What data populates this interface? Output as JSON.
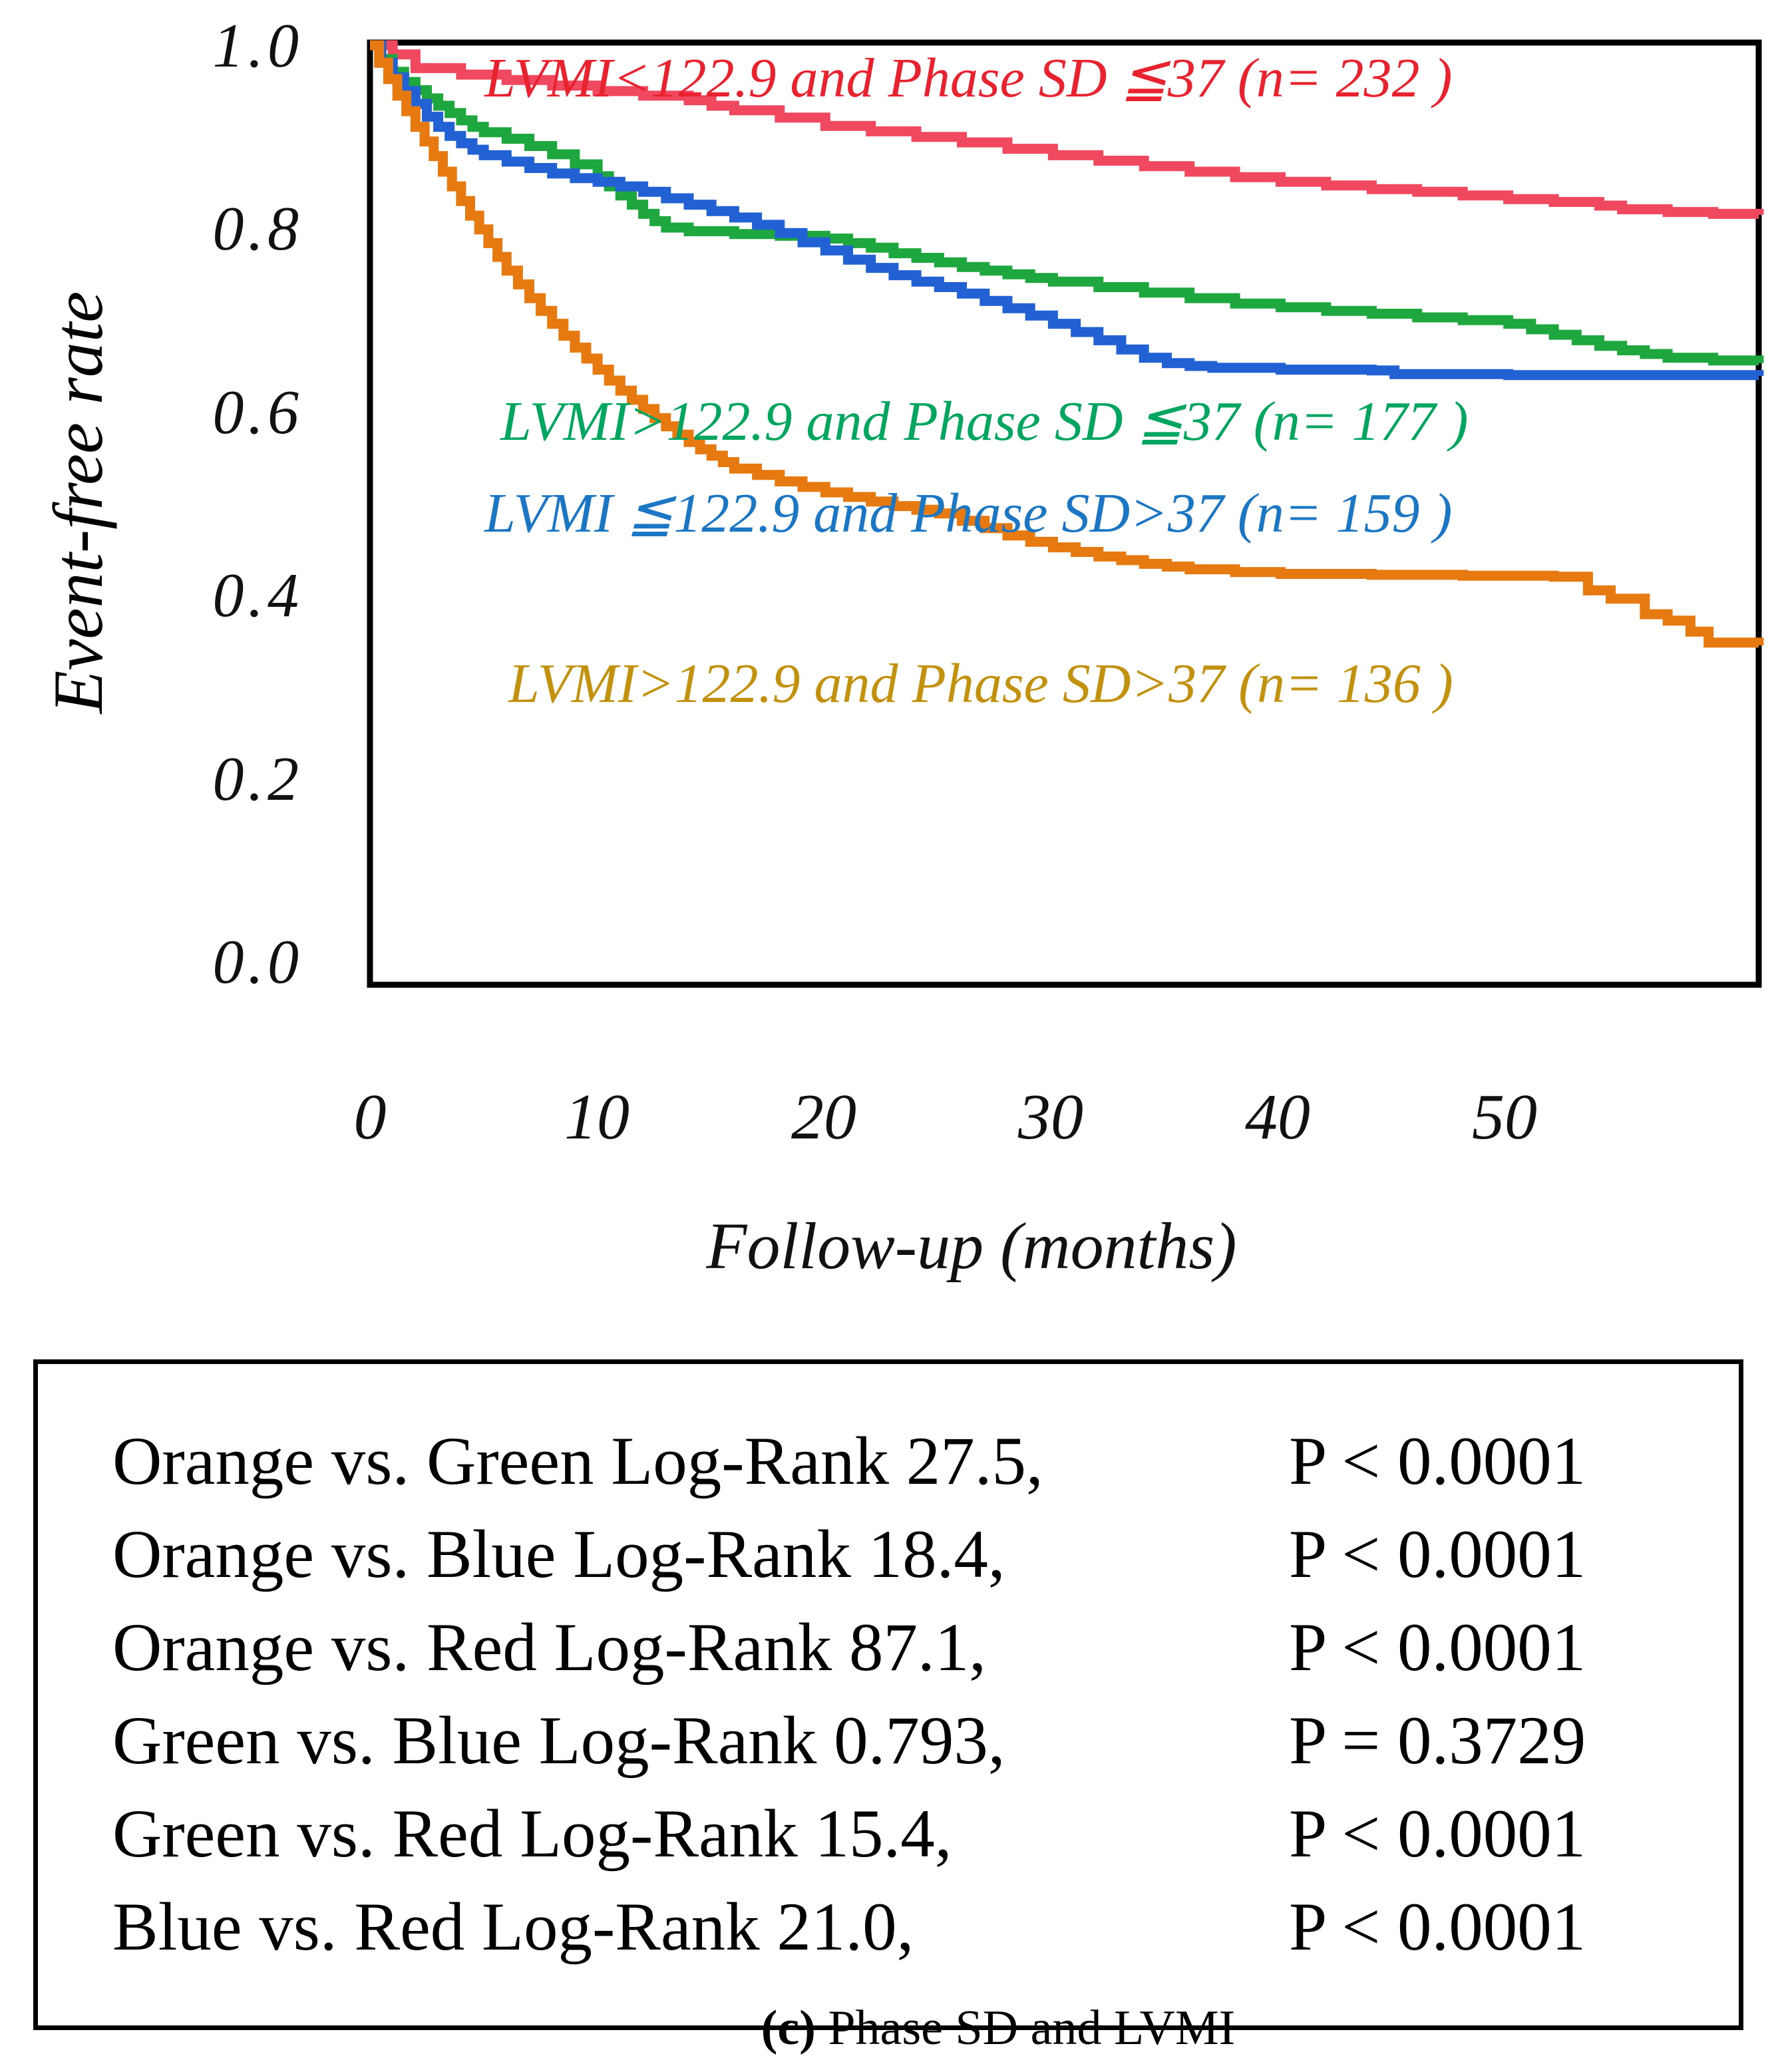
{
  "figure": {
    "caption_prefix": "(c)",
    "caption_rest": " Phase SD and LVMI"
  },
  "chart_data": {
    "type": "line",
    "subtype": "kaplan-meier-step-curves",
    "title": "",
    "xlabel": "Follow-up (months)",
    "ylabel": "Event-free rate",
    "xlim": [
      0,
      61
    ],
    "ylim": [
      0.0,
      1.0
    ],
    "xticks": [
      "0",
      "10",
      "20",
      "30",
      "40",
      "50"
    ],
    "yticks": [
      "1.0",
      "0.8",
      "0.6",
      "0.4",
      "0.2",
      "0.0"
    ],
    "grid": false,
    "legend_position": "inside-plot",
    "series": [
      {
        "name": "red",
        "label": "LVMI<122.9 and Phase SD ≦37 (n= 232 )",
        "n": 232,
        "color": "#f0485f",
        "label_color": "#e8232f",
        "points": [
          [
            0,
            1.0
          ],
          [
            1,
            0.99
          ],
          [
            2,
            0.975
          ],
          [
            4,
            0.968
          ],
          [
            6,
            0.962
          ],
          [
            8,
            0.956
          ],
          [
            10,
            0.95
          ],
          [
            12,
            0.945
          ],
          [
            14,
            0.94
          ],
          [
            15,
            0.934
          ],
          [
            16,
            0.929
          ],
          [
            18,
            0.921
          ],
          [
            20,
            0.912
          ],
          [
            22,
            0.906
          ],
          [
            24,
            0.9
          ],
          [
            26,
            0.894
          ],
          [
            28,
            0.887
          ],
          [
            30,
            0.88
          ],
          [
            32,
            0.874
          ],
          [
            34,
            0.868
          ],
          [
            36,
            0.862
          ],
          [
            38,
            0.856
          ],
          [
            40,
            0.851
          ],
          [
            42,
            0.847
          ],
          [
            44,
            0.843
          ],
          [
            46,
            0.84
          ],
          [
            48,
            0.836
          ],
          [
            50,
            0.832
          ],
          [
            52,
            0.829
          ],
          [
            54,
            0.825
          ],
          [
            55,
            0.821
          ],
          [
            57,
            0.818
          ],
          [
            59,
            0.816
          ],
          [
            61,
            0.815
          ]
        ]
      },
      {
        "name": "green",
        "label": "LVMI>122.9 and Phase SD ≦37 (n= 177 )",
        "n": 177,
        "color": "#1ea73e",
        "label_color": "#00a55f",
        "points": [
          [
            0,
            1.0
          ],
          [
            0.5,
            0.985
          ],
          [
            1,
            0.971
          ],
          [
            1.5,
            0.96
          ],
          [
            2,
            0.951
          ],
          [
            2.5,
            0.942
          ],
          [
            3,
            0.934
          ],
          [
            3.5,
            0.926
          ],
          [
            4,
            0.918
          ],
          [
            4.5,
            0.911
          ],
          [
            5,
            0.905
          ],
          [
            6,
            0.898
          ],
          [
            7,
            0.89
          ],
          [
            8,
            0.881
          ],
          [
            9,
            0.87
          ],
          [
            10,
            0.857
          ],
          [
            10.5,
            0.846
          ],
          [
            11,
            0.836
          ],
          [
            11.5,
            0.826
          ],
          [
            12,
            0.816
          ],
          [
            12.5,
            0.808
          ],
          [
            13,
            0.801
          ],
          [
            14,
            0.797
          ],
          [
            16,
            0.794
          ],
          [
            18,
            0.792
          ],
          [
            20,
            0.789
          ],
          [
            21,
            0.784
          ],
          [
            22,
            0.779
          ],
          [
            23,
            0.773
          ],
          [
            24,
            0.768
          ],
          [
            25,
            0.763
          ],
          [
            26,
            0.758
          ],
          [
            27,
            0.754
          ],
          [
            28,
            0.75
          ],
          [
            29,
            0.746
          ],
          [
            30,
            0.742
          ],
          [
            32,
            0.736
          ],
          [
            34,
            0.73
          ],
          [
            36,
            0.724
          ],
          [
            38,
            0.718
          ],
          [
            40,
            0.714
          ],
          [
            42,
            0.71
          ],
          [
            44,
            0.707
          ],
          [
            46,
            0.703
          ],
          [
            48,
            0.7
          ],
          [
            50,
            0.696
          ],
          [
            51,
            0.69
          ],
          [
            52,
            0.684
          ],
          [
            53,
            0.678
          ],
          [
            54,
            0.672
          ],
          [
            55,
            0.667
          ],
          [
            56,
            0.663
          ],
          [
            57,
            0.659
          ],
          [
            59,
            0.656
          ],
          [
            61,
            0.653
          ]
        ]
      },
      {
        "name": "blue",
        "label": "LVMI ≦122.9 and Phase SD>37 (n= 159 )",
        "n": 159,
        "color": "#2161d4",
        "label_color": "#1b76c3",
        "points": [
          [
            0,
            1.0
          ],
          [
            0.5,
            0.981
          ],
          [
            1,
            0.965
          ],
          [
            1.5,
            0.95
          ],
          [
            2,
            0.936
          ],
          [
            2.5,
            0.922
          ],
          [
            3,
            0.911
          ],
          [
            3.5,
            0.901
          ],
          [
            4,
            0.893
          ],
          [
            4.5,
            0.886
          ],
          [
            5,
            0.88
          ],
          [
            6,
            0.873
          ],
          [
            7,
            0.866
          ],
          [
            8,
            0.86
          ],
          [
            9,
            0.855
          ],
          [
            10,
            0.851
          ],
          [
            11,
            0.846
          ],
          [
            12,
            0.84
          ],
          [
            13,
            0.833
          ],
          [
            14,
            0.826
          ],
          [
            15,
            0.819
          ],
          [
            16,
            0.812
          ],
          [
            17,
            0.804
          ],
          [
            18,
            0.795
          ],
          [
            19,
            0.785
          ],
          [
            20,
            0.776
          ],
          [
            21,
            0.766
          ],
          [
            22,
            0.757
          ],
          [
            23,
            0.749
          ],
          [
            24,
            0.742
          ],
          [
            25,
            0.736
          ],
          [
            26,
            0.729
          ],
          [
            27,
            0.721
          ],
          [
            28,
            0.713
          ],
          [
            29,
            0.705
          ],
          [
            30,
            0.696
          ],
          [
            31,
            0.687
          ],
          [
            32,
            0.678
          ],
          [
            33,
            0.668
          ],
          [
            34,
            0.659
          ],
          [
            35,
            0.653
          ],
          [
            36,
            0.65
          ],
          [
            37,
            0.648
          ],
          [
            40,
            0.646
          ],
          [
            44,
            0.645
          ],
          [
            45,
            0.641
          ],
          [
            50,
            0.64
          ],
          [
            56,
            0.64
          ],
          [
            61,
            0.639
          ]
        ]
      },
      {
        "name": "orange",
        "label": "LVMI>122.9 and Phase SD>37 (n= 136 )",
        "n": 136,
        "color": "#e6790f",
        "label_color": "#c2920e",
        "points": [
          [
            0,
            1.0
          ],
          [
            0.4,
            0.981
          ],
          [
            0.8,
            0.963
          ],
          [
            1.2,
            0.945
          ],
          [
            1.6,
            0.928
          ],
          [
            2,
            0.911
          ],
          [
            2.4,
            0.895
          ],
          [
            2.8,
            0.879
          ],
          [
            3.2,
            0.862
          ],
          [
            3.6,
            0.846
          ],
          [
            4,
            0.83
          ],
          [
            4.4,
            0.814
          ],
          [
            4.8,
            0.799
          ],
          [
            5.2,
            0.784
          ],
          [
            5.6,
            0.769
          ],
          [
            6,
            0.754
          ],
          [
            6.5,
            0.739
          ],
          [
            7,
            0.724
          ],
          [
            7.5,
            0.71
          ],
          [
            8,
            0.696
          ],
          [
            8.5,
            0.683
          ],
          [
            9,
            0.67
          ],
          [
            9.5,
            0.658
          ],
          [
            10,
            0.646
          ],
          [
            10.5,
            0.634
          ],
          [
            11,
            0.623
          ],
          [
            11.5,
            0.613
          ],
          [
            12,
            0.603
          ],
          [
            12.5,
            0.593
          ],
          [
            13,
            0.584
          ],
          [
            13.5,
            0.575
          ],
          [
            14,
            0.567
          ],
          [
            14.5,
            0.559
          ],
          [
            15,
            0.552
          ],
          [
            15.5,
            0.545
          ],
          [
            16,
            0.538
          ],
          [
            17,
            0.531
          ],
          [
            18,
            0.524
          ],
          [
            19,
            0.518
          ],
          [
            20,
            0.512
          ],
          [
            21,
            0.507
          ],
          [
            22,
            0.502
          ],
          [
            23,
            0.497
          ],
          [
            24,
            0.493
          ],
          [
            25,
            0.489
          ],
          [
            26,
            0.481
          ],
          [
            27,
            0.473
          ],
          [
            28,
            0.465
          ],
          [
            29,
            0.458
          ],
          [
            30,
            0.452
          ],
          [
            31,
            0.447
          ],
          [
            32,
            0.442
          ],
          [
            33,
            0.438
          ],
          [
            34,
            0.434
          ],
          [
            35,
            0.431
          ],
          [
            36,
            0.428
          ],
          [
            38,
            0.425
          ],
          [
            40,
            0.423
          ],
          [
            44,
            0.422
          ],
          [
            48,
            0.421
          ],
          [
            52,
            0.42
          ],
          [
            53.5,
            0.405
          ],
          [
            54.5,
            0.396
          ],
          [
            56,
            0.379
          ],
          [
            57,
            0.372
          ],
          [
            58,
            0.36
          ],
          [
            58.8,
            0.348
          ],
          [
            61,
            0.345
          ]
        ]
      }
    ]
  },
  "stats_box": {
    "rows": [
      {
        "comparison": "Orange vs. Green Log-Rank 27.5,",
        "p_value": "P < 0.0001"
      },
      {
        "comparison": "Orange vs. Blue Log-Rank 18.4,",
        "p_value": "P < 0.0001"
      },
      {
        "comparison": "Orange vs. Red Log-Rank 87.1,",
        "p_value": "P < 0.0001"
      },
      {
        "comparison": "Green vs. Blue Log-Rank 0.793,",
        "p_value": "P = 0.3729"
      },
      {
        "comparison": "Green vs. Red Log-Rank 15.4,",
        "p_value": "P < 0.0001"
      },
      {
        "comparison": "Blue vs. Red Log-Rank 21.0,",
        "p_value": "P < 0.0001"
      }
    ]
  }
}
